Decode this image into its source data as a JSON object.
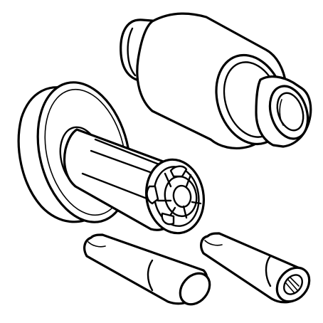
{
  "drawing": {
    "style": "black line-art exploded parts illustration",
    "line_color": "#000000",
    "background_color": "#ffffff",
    "parts": [
      "stepped-cylinder-bushing",
      "flanged-slotted-sleeve",
      "tapered-pin-left",
      "tapered-pin-right"
    ]
  }
}
